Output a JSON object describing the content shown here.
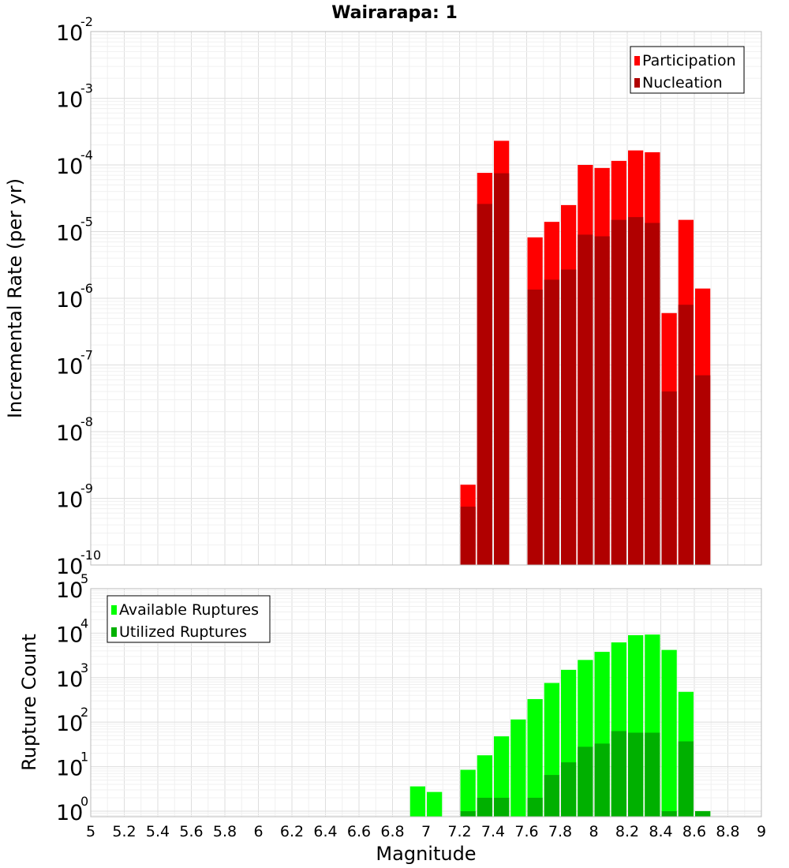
{
  "chart_data": [
    {
      "type": "bar",
      "title": "Wairarapa: 1",
      "xlabel": "",
      "ylabel": "Incremental Rate (per yr)",
      "yscale": "log",
      "xlim": [
        5,
        9
      ],
      "ylim": [
        1e-10,
        0.01
      ],
      "grid": true,
      "legend_placement": "top-right",
      "ytick_exponents": [
        "-10",
        "-9",
        "-8",
        "-7",
        "-6",
        "-5",
        "-4",
        "-3",
        "-2"
      ],
      "ytick_base": "10",
      "x": [
        7.25,
        7.35,
        7.45,
        7.65,
        7.75,
        7.85,
        7.95,
        8.05,
        8.15,
        8.25,
        8.35,
        8.45,
        8.55,
        8.65
      ],
      "series": [
        {
          "name": "Participation",
          "color": "#ff0000",
          "values": [
            1.6e-09,
            7.6e-05,
            0.00023,
            8.2e-06,
            1.4e-05,
            2.5e-05,
            0.0001,
            9e-05,
            0.000115,
            0.000165,
            0.000155,
            6e-07,
            1.5e-05,
            1.4e-06
          ]
        },
        {
          "name": "Nucleation",
          "color": "#b00000",
          "values": [
            7.5e-10,
            2.6e-05,
            7.5e-05,
            1.35e-06,
            1.9e-06,
            2.7e-06,
            9e-06,
            8.5e-06,
            1.5e-05,
            1.65e-05,
            1.35e-05,
            4e-08,
            8e-07,
            7e-08
          ]
        }
      ]
    },
    {
      "type": "bar",
      "title": "",
      "xlabel": "Magnitude",
      "ylabel": "Rupture Count",
      "yscale": "log",
      "xlim": [
        5,
        9
      ],
      "ylim": [
        0.75,
        100000
      ],
      "grid": true,
      "legend_placement": "top-left",
      "ytick_exponents": [
        "0",
        "1",
        "2",
        "3",
        "4",
        "5"
      ],
      "ytick_base": "10",
      "xticks": [
        "5",
        "5.2",
        "5.4",
        "5.6",
        "5.8",
        "6",
        "6.2",
        "6.4",
        "6.6",
        "6.8",
        "7",
        "7.2",
        "7.4",
        "7.6",
        "7.8",
        "8",
        "8.2",
        "8.4",
        "8.6",
        "8.8",
        "9"
      ],
      "x": [
        6.95,
        7.05,
        7.25,
        7.35,
        7.45,
        7.55,
        7.65,
        7.75,
        7.85,
        7.95,
        8.05,
        8.15,
        8.25,
        8.35,
        8.45,
        8.55,
        8.65
      ],
      "series": [
        {
          "name": "Available Ruptures",
          "color": "#00ff00",
          "values": [
            3.6,
            2.7,
            8.5,
            18,
            48,
            115,
            330,
            760,
            1500,
            2500,
            3800,
            6200,
            9000,
            9300,
            4200,
            480,
            1
          ]
        },
        {
          "name": "Utilized Ruptures",
          "color": "#00b000",
          "values": [
            0,
            0,
            1,
            2,
            2,
            0,
            2,
            6.5,
            12.5,
            28,
            33,
            63,
            58,
            58,
            1,
            37,
            1
          ]
        }
      ]
    }
  ]
}
